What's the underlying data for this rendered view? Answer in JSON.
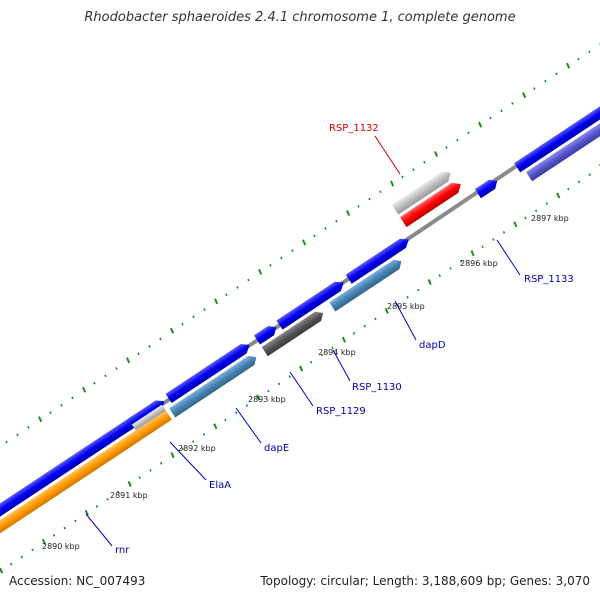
{
  "title": "Rhodobacter sphaeroides 2.4.1 chromosome 1, complete genome",
  "accession": "Accession: NC_007493",
  "stats": "Topology: circular; Length: 3,188,609 bp; Genes: 3,070",
  "kbp_ticks": [
    {
      "label": "2890 kbp",
      "kbp": 2890
    },
    {
      "label": "2891 kbp",
      "kbp": 2891
    },
    {
      "label": "2892 kbp",
      "kbp": 2892
    },
    {
      "label": "2893 kbp",
      "kbp": 2893
    },
    {
      "label": "2894 kbp",
      "kbp": 2894
    },
    {
      "label": "2895 kbp",
      "kbp": 2895
    },
    {
      "label": "2896 kbp",
      "kbp": 2896
    },
    {
      "label": "2897 kbp",
      "kbp": 2897
    }
  ],
  "gene_labels": [
    {
      "name": "rnr",
      "color": "#0000aa"
    },
    {
      "name": "ElaA",
      "color": "#0000aa"
    },
    {
      "name": "dapE",
      "color": "#0000aa"
    },
    {
      "name": "RSP_1129",
      "color": "#0000aa"
    },
    {
      "name": "RSP_1130",
      "color": "#0000aa"
    },
    {
      "name": "dapD",
      "color": "#0000aa"
    },
    {
      "name": "RSP_1133",
      "color": "#0000aa"
    },
    {
      "name": "RSP_1132",
      "color": "#dd0000"
    }
  ],
  "colors": {
    "backbone": "#888888",
    "cds": "#0000ee",
    "rnr_feature": "#ff9900",
    "dap_feature": "#4682b4",
    "dark_feature": "#555555",
    "light_feature": "#c0c0c0",
    "highlight": "#ff0000",
    "tick_green": "#228b22",
    "label_line_blue": "#0000cc",
    "label_line_red": "#cc0000"
  }
}
